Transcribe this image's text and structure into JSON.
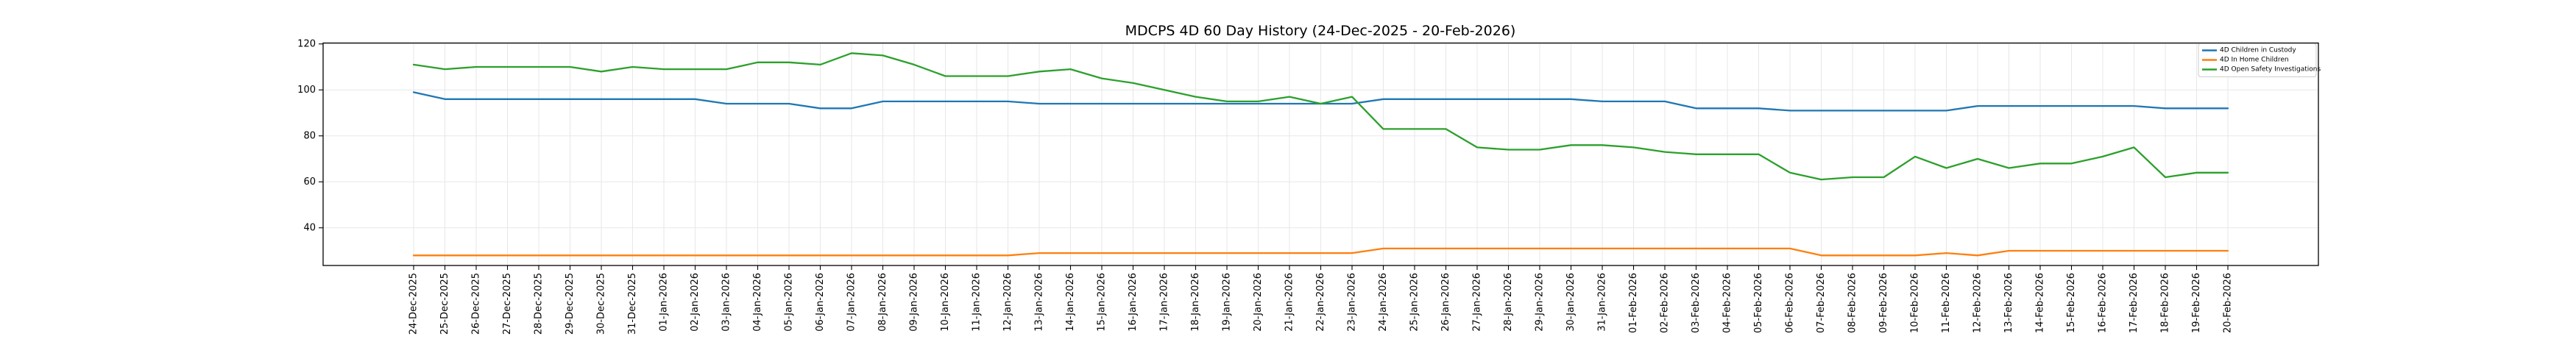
{
  "title": "MDCPS 4D 60 Day History (24-Dec-2025 - 20-Feb-2026)",
  "chart_data": {
    "type": "line",
    "title": "MDCPS 4D 60 Day History (24-Dec-2025 - 20-Feb-2026)",
    "xlabel": "",
    "ylabel": "",
    "grid": true,
    "legend_position": "upper right",
    "yticks": [
      40,
      60,
      80,
      100,
      120
    ],
    "ylim": [
      23.6,
      120.4
    ],
    "x": [
      "24-Dec-2025",
      "25-Dec-2025",
      "26-Dec-2025",
      "27-Dec-2025",
      "28-Dec-2025",
      "29-Dec-2025",
      "30-Dec-2025",
      "31-Dec-2025",
      "01-Jan-2026",
      "02-Jan-2026",
      "03-Jan-2026",
      "04-Jan-2026",
      "05-Jan-2026",
      "06-Jan-2026",
      "07-Jan-2026",
      "08-Jan-2026",
      "09-Jan-2026",
      "10-Jan-2026",
      "11-Jan-2026",
      "12-Jan-2026",
      "13-Jan-2026",
      "14-Jan-2026",
      "15-Jan-2026",
      "16-Jan-2026",
      "17-Jan-2026",
      "18-Jan-2026",
      "19-Jan-2026",
      "20-Jan-2026",
      "21-Jan-2026",
      "22-Jan-2026",
      "23-Jan-2026",
      "24-Jan-2026",
      "25-Jan-2026",
      "26-Jan-2026",
      "27-Jan-2026",
      "28-Jan-2026",
      "29-Jan-2026",
      "30-Jan-2026",
      "31-Jan-2026",
      "01-Feb-2026",
      "02-Feb-2026",
      "03-Feb-2026",
      "04-Feb-2026",
      "05-Feb-2026",
      "06-Feb-2026",
      "07-Feb-2026",
      "08-Feb-2026",
      "09-Feb-2026",
      "10-Feb-2026",
      "11-Feb-2026",
      "12-Feb-2026",
      "13-Feb-2026",
      "14-Feb-2026",
      "15-Feb-2026",
      "16-Feb-2026",
      "17-Feb-2026",
      "18-Feb-2026",
      "19-Feb-2026",
      "20-Feb-2026"
    ],
    "series": [
      {
        "name": "4D Children in Custody",
        "color": "#1f77b4",
        "values": [
          99,
          96,
          96,
          96,
          96,
          96,
          96,
          96,
          96,
          96,
          94,
          94,
          94,
          92,
          92,
          95,
          95,
          95,
          95,
          95,
          94,
          94,
          94,
          94,
          94,
          94,
          94,
          94,
          94,
          94,
          94,
          96,
          96,
          96,
          96,
          96,
          96,
          96,
          95,
          95,
          95,
          92,
          92,
          92,
          91,
          91,
          91,
          91,
          91,
          91,
          93,
          93,
          93,
          93,
          93,
          93,
          92,
          92,
          92
        ]
      },
      {
        "name": "4D In Home Children",
        "color": "#ff7f0e",
        "values": [
          28,
          28,
          28,
          28,
          28,
          28,
          28,
          28,
          28,
          28,
          28,
          28,
          28,
          28,
          28,
          28,
          28,
          28,
          28,
          28,
          29,
          29,
          29,
          29,
          29,
          29,
          29,
          29,
          29,
          29,
          29,
          31,
          31,
          31,
          31,
          31,
          31,
          31,
          31,
          31,
          31,
          31,
          31,
          31,
          31,
          28,
          28,
          28,
          28,
          29,
          28,
          30,
          30,
          30,
          30,
          30,
          30,
          30,
          30
        ]
      },
      {
        "name": "4D Open Safety Investigations",
        "color": "#2ca02c",
        "values": [
          111,
          109,
          110,
          110,
          110,
          110,
          108,
          110,
          109,
          109,
          109,
          112,
          112,
          111,
          116,
          115,
          111,
          106,
          106,
          106,
          108,
          109,
          105,
          103,
          100,
          97,
          95,
          95,
          97,
          94,
          97,
          83,
          83,
          83,
          75,
          74,
          74,
          76,
          76,
          75,
          73,
          72,
          72,
          72,
          64,
          61,
          62,
          62,
          71,
          66,
          70,
          66,
          68,
          68,
          71,
          75,
          62,
          64,
          64
        ]
      }
    ]
  },
  "axes": {
    "ytick_labels": [
      "40",
      "60",
      "80",
      "100",
      "120"
    ]
  }
}
